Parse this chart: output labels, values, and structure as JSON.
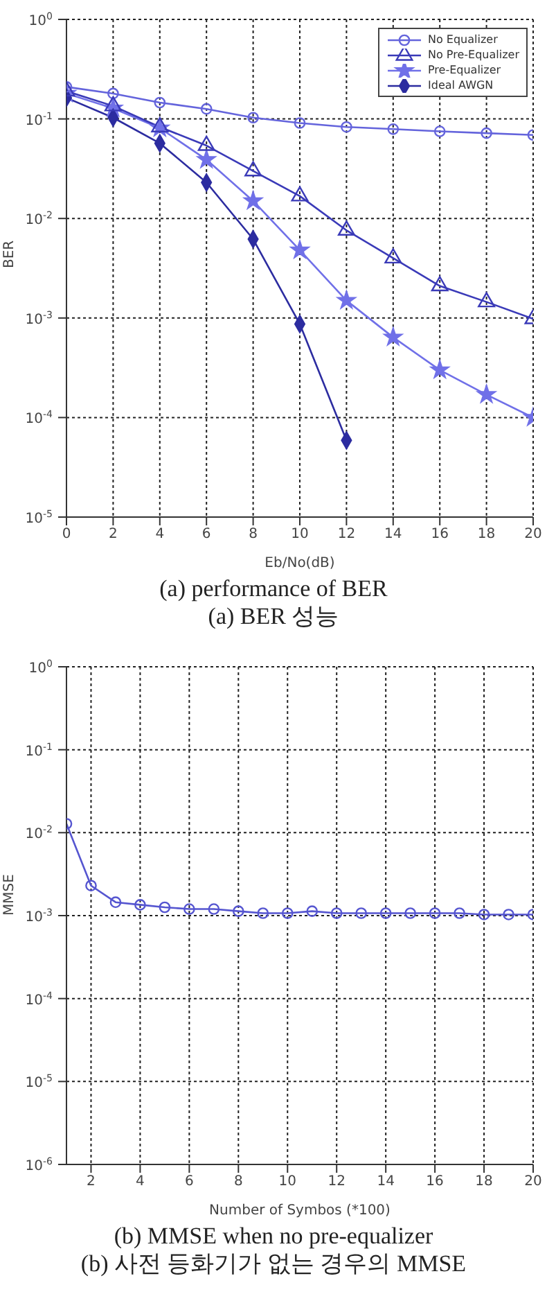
{
  "chart_data": [
    {
      "type": "line",
      "title": "(a) performance of BER",
      "subtitle": "(a) BER 성능",
      "xlabel": "Eb/No(dB)",
      "ylabel": "BER",
      "log": "y",
      "grid": true,
      "legend": "top right",
      "line_style": "solid",
      "x": [
        0,
        2,
        4,
        6,
        8,
        10,
        12,
        14,
        16,
        18,
        20
      ],
      "xlim": [
        0,
        20
      ],
      "xticks": [
        0,
        2,
        4,
        6,
        8,
        10,
        12,
        14,
        16,
        18,
        20
      ],
      "ylim": [
        1e-05,
        1
      ],
      "yticks": [
        {
          "value": 1e-05,
          "label": "10$^{-5}$"
        },
        {
          "value": 0.0001,
          "label": "10$^{-4}$"
        },
        {
          "value": 0.001,
          "label": "10$^{-3}$"
        },
        {
          "value": 0.01,
          "label": "10$^{-2}$"
        },
        {
          "value": 0.1,
          "label": "10$^{-1}$"
        },
        {
          "value": 1,
          "label": "10$^{0}$"
        }
      ],
      "series": [
        {
          "name": "No Equalizer",
          "color": "#6464dc",
          "marker": "circle",
          "values": [
            0.21,
            0.18,
            0.146,
            0.126,
            0.103,
            0.091,
            0.083,
            0.079,
            0.075,
            0.072,
            0.069
          ]
        },
        {
          "name": "No Pre-Equalizer",
          "color": "#3a3ab8",
          "marker": "triangle",
          "values": [
            0.19,
            0.135,
            0.083,
            0.054,
            0.03,
            0.0168,
            0.0076,
            0.004,
            0.0021,
            0.00145,
            0.00098
          ]
        },
        {
          "name": "Pre-Equalizer",
          "color": "#7070e8",
          "marker": "star",
          "values": [
            0.18,
            0.128,
            0.081,
            0.039,
            0.015,
            0.0048,
            0.0015,
            0.00064,
            0.0003,
            0.00017,
            0.0001
          ]
        },
        {
          "name": "Ideal AWGN",
          "color": "#2c2ca0",
          "marker": "diamond",
          "values": [
            0.163,
            0.103,
            0.057,
            0.023,
            0.0062,
            0.00087,
            5.9e-05,
            null,
            null,
            null,
            null
          ]
        }
      ]
    },
    {
      "type": "line",
      "title": "(b) MMSE when no pre-equalizer",
      "subtitle": "(b) 사전 등화기가 없는 경우의 MMSE",
      "xlabel": "Number of Symbos (*100)",
      "ylabel": "MMSE",
      "log": "y",
      "grid": true,
      "legend": false,
      "line_style": "solid",
      "marker": "circle",
      "x": [
        1,
        2,
        3,
        4,
        5,
        6,
        7,
        8,
        9,
        10,
        11,
        12,
        13,
        14,
        15,
        16,
        17,
        18,
        19,
        20
      ],
      "xlim": [
        1,
        20
      ],
      "xticks": [
        2,
        4,
        6,
        8,
        10,
        12,
        14,
        16,
        18,
        20
      ],
      "ylim": [
        1e-06,
        1
      ],
      "yticks": [
        {
          "value": 1e-06,
          "label": "10$^{-6}$"
        },
        {
          "value": 1e-05,
          "label": "10$^{-5}$"
        },
        {
          "value": 0.0001,
          "label": "10$^{-4}$"
        },
        {
          "value": 0.001,
          "label": "10$^{-3}$"
        },
        {
          "value": 0.01,
          "label": "10$^{-2}$"
        },
        {
          "value": 0.1,
          "label": "10$^{-1}$"
        },
        {
          "value": 1,
          "label": "10$^{0}$"
        }
      ],
      "series": [
        {
          "color": "#5555d0",
          "values": [
            0.0128,
            0.0023,
            0.00145,
            0.00135,
            0.00126,
            0.0012,
            0.0012,
            0.00113,
            0.00107,
            0.00107,
            0.00113,
            0.00107,
            0.00107,
            0.00107,
            0.00107,
            0.00107,
            0.00107,
            0.00103,
            0.00103,
            0.00103
          ]
        }
      ]
    }
  ]
}
